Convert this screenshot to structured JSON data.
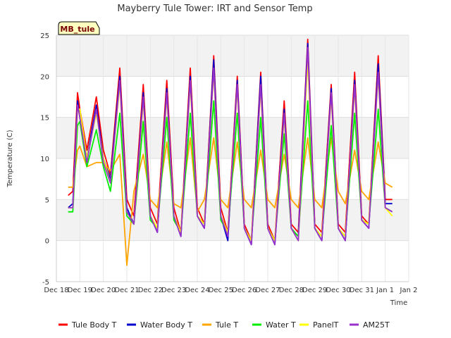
{
  "chart_data": {
    "type": "line",
    "title": "Mayberry Tule Tower: IRT and Sensor Temp",
    "xlabel": "Time",
    "ylabel": "Temperature (C)",
    "badge": "MB_tule",
    "x_ticks": [
      "Dec 18",
      "Dec 19",
      "Dec 20",
      "Dec 21",
      "Dec 22",
      "Dec 23",
      "Dec 24",
      "Dec 25",
      "Dec 26",
      "Dec 27",
      "Dec 28",
      "Dec 29",
      "Dec 30",
      "Dec 31",
      "Jan 1",
      "Jan 2"
    ],
    "xlim": [
      0,
      15
    ],
    "ylim": [
      -5,
      25
    ],
    "y_ticks": [
      -5,
      0,
      5,
      10,
      15,
      20,
      25
    ],
    "grid": true,
    "legend_position": "bottom",
    "x": [
      0.5,
      0.7,
      0.9,
      1.0,
      1.3,
      1.7,
      2.0,
      2.3,
      2.7,
      3.0,
      3.3,
      3.7,
      4.0,
      4.3,
      4.7,
      5.0,
      5.3,
      5.7,
      6.0,
      6.3,
      6.7,
      7.0,
      7.3,
      7.7,
      8.0,
      8.3,
      8.7,
      9.0,
      9.3,
      9.7,
      10.0,
      10.3,
      10.7,
      11.0,
      11.3,
      11.7,
      12.0,
      12.3,
      12.7,
      13.0,
      13.3,
      13.7,
      14.0,
      14.3
    ],
    "series": [
      {
        "name": "Tule Body T",
        "color": "#ff0000",
        "values": [
          5.5,
          6,
          18,
          16,
          11,
          17.5,
          11,
          8,
          21,
          5,
          3,
          19,
          4,
          2,
          19.5,
          4,
          1,
          21,
          4,
          2,
          22.5,
          4,
          1,
          20,
          2,
          0,
          20.5,
          2,
          0,
          17,
          2,
          1,
          24.5,
          2,
          1,
          19,
          2,
          1,
          20.5,
          3,
          2,
          22.5,
          5,
          5
        ]
      },
      {
        "name": "Water Body T",
        "color": "#0000cc",
        "values": [
          4,
          4.5,
          17,
          15,
          10,
          16.5,
          10,
          7.5,
          20,
          4,
          2,
          18,
          3,
          1,
          18.5,
          3,
          0.5,
          20,
          3,
          1.5,
          22,
          3,
          0,
          19.5,
          1.5,
          -0.5,
          20,
          1.5,
          -0.5,
          16,
          1.5,
          0.5,
          24,
          1.5,
          0,
          18.5,
          1.5,
          0,
          19.5,
          2.5,
          1.5,
          21.5,
          4.5,
          4.5
        ]
      },
      {
        "name": "Tule T",
        "color": "#ffa500",
        "values": [
          6.5,
          6.5,
          11,
          11.5,
          9,
          9.5,
          9.5,
          8.5,
          10.5,
          -3,
          6,
          10.5,
          5,
          4,
          12,
          4.5,
          4,
          12.5,
          3.5,
          5,
          12.5,
          5,
          4,
          12,
          5,
          4,
          11,
          5,
          4,
          10.5,
          5,
          4,
          12.5,
          5,
          4,
          12.5,
          6,
          4.5,
          11,
          6,
          5,
          12,
          7,
          6.5
        ]
      },
      {
        "name": "Water T",
        "color": "#00ee00",
        "values": [
          3.5,
          3.5,
          14,
          14.5,
          9,
          13.5,
          9,
          6,
          15.5,
          3,
          2,
          14.5,
          2.5,
          1.5,
          15,
          2.5,
          1,
          15.5,
          3,
          2,
          17,
          2.5,
          1,
          15.5,
          1.5,
          0,
          15,
          1.5,
          0,
          13,
          1.5,
          0.5,
          17,
          1.5,
          0.5,
          14,
          1.5,
          0.5,
          15.5,
          2.5,
          2,
          16,
          4,
          3.5
        ]
      },
      {
        "name": "PanelT",
        "color": "#ffff00",
        "values": [
          4,
          4,
          16,
          16,
          10,
          15.5,
          10,
          7,
          19,
          3.5,
          2,
          17,
          3,
          1.5,
          17.5,
          3,
          1,
          19,
          3,
          2,
          20.5,
          3,
          1,
          18.5,
          1.5,
          0,
          18.5,
          1.5,
          0,
          15,
          1.5,
          0,
          22,
          1.5,
          0.5,
          17.5,
          1.5,
          0.5,
          18.5,
          2.5,
          2,
          20,
          4,
          3
        ]
      },
      {
        "name": "AM25T",
        "color": "#9932cc",
        "values": [
          4,
          4,
          16.5,
          15,
          9.5,
          16,
          9.5,
          7,
          19.5,
          3.5,
          2,
          17.5,
          3,
          1,
          18,
          3,
          0.5,
          19.5,
          3,
          1.5,
          21,
          3,
          0.5,
          19,
          1.5,
          -0.5,
          19,
          1.5,
          -0.5,
          15.5,
          1.5,
          0,
          23.5,
          1.5,
          0,
          18,
          1.5,
          0,
          19,
          2.5,
          1.5,
          20.5,
          4,
          3.5
        ]
      }
    ]
  }
}
